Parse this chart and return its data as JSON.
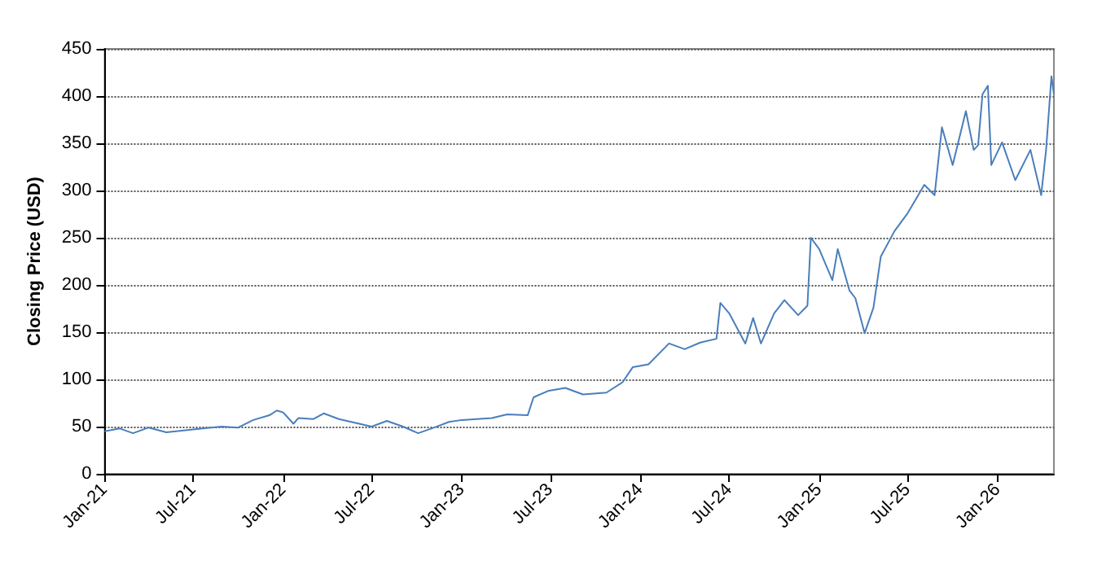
{
  "chart_data": {
    "type": "line",
    "ylabel": "Closing Price (USD)",
    "marker": "none",
    "grid": "y",
    "xlim": [
      "2021-01-01",
      "2026-04-26"
    ],
    "ylim": [
      0,
      450
    ],
    "yticks": [
      0,
      50,
      100,
      150,
      200,
      250,
      300,
      350,
      400,
      450
    ],
    "xticks": [
      {
        "value": "2021-01-01",
        "label": "Jan-21"
      },
      {
        "value": "2021-07-01",
        "label": "Jul-21"
      },
      {
        "value": "2022-01-01",
        "label": "Jan-22"
      },
      {
        "value": "2022-07-01",
        "label": "Jul-22"
      },
      {
        "value": "2023-01-01",
        "label": "Jan-23"
      },
      {
        "value": "2023-07-01",
        "label": "Jul-23"
      },
      {
        "value": "2024-01-01",
        "label": "Jan-24"
      },
      {
        "value": "2024-07-01",
        "label": "Jul-24"
      },
      {
        "value": "2025-01-01",
        "label": "Jan-25"
      },
      {
        "value": "2025-07-01",
        "label": "Jul-25"
      },
      {
        "value": "2026-01-01",
        "label": "Jan-26"
      }
    ],
    "x": [
      "2021-01-01",
      "2021-02-01",
      "2021-02-28",
      "2021-04-01",
      "2021-05-07",
      "2021-07-01",
      "2021-08-28",
      "2021-10-01",
      "2021-11-01",
      "2021-12-04",
      "2021-12-19",
      "2022-01-01",
      "2022-01-22",
      "2022-02-01",
      "2022-03-04",
      "2022-03-25",
      "2022-04-25",
      "2022-07-01",
      "2022-08-01",
      "2022-09-03",
      "2022-10-04",
      "2022-11-06",
      "2022-12-06",
      "2023-01-01",
      "2023-03-04",
      "2023-04-04",
      "2023-05-16",
      "2023-05-28",
      "2023-06-28",
      "2023-08-01",
      "2023-09-06",
      "2023-10-24",
      "2023-11-26",
      "2023-12-17",
      "2024-01-18",
      "2024-02-29",
      "2024-04-01",
      "2024-05-03",
      "2024-06-05",
      "2024-06-13",
      "2024-07-01",
      "2024-08-03",
      "2024-08-19",
      "2024-09-04",
      "2024-10-01",
      "2024-10-22",
      "2024-11-19",
      "2024-12-08",
      "2024-12-15",
      "2025-01-01",
      "2025-01-28",
      "2025-02-08",
      "2025-03-04",
      "2025-03-16",
      "2025-04-04",
      "2025-04-22",
      "2025-05-07",
      "2025-06-04",
      "2025-07-01",
      "2025-08-04",
      "2025-08-25",
      "2025-09-09",
      "2025-10-01",
      "2025-10-28",
      "2025-11-13",
      "2025-11-22",
      "2025-12-01",
      "2025-12-12",
      "2025-12-19",
      "2026-01-10",
      "2026-02-06",
      "2026-03-09",
      "2026-03-31",
      "2026-04-10",
      "2026-04-21",
      "2026-04-26"
    ],
    "series": [
      {
        "color": "#4a7ebb",
        "values": [
          45,
          48,
          43,
          49,
          44,
          47,
          50,
          49,
          57,
          62,
          67,
          65,
          53,
          59,
          58,
          64,
          58,
          50,
          56,
          50,
          43,
          49,
          55,
          57,
          59,
          63,
          62,
          81,
          88,
          91,
          84,
          86,
          97,
          113,
          116,
          138,
          132,
          139,
          143,
          181,
          170,
          138,
          165,
          138,
          170,
          184,
          168,
          178,
          250,
          238,
          205,
          238,
          194,
          186,
          149,
          176,
          230,
          257,
          276,
          306,
          295,
          367,
          327,
          384,
          343,
          348,
          402,
          411,
          327,
          351,
          311,
          343,
          295,
          343,
          421,
          402
        ]
      }
    ]
  }
}
